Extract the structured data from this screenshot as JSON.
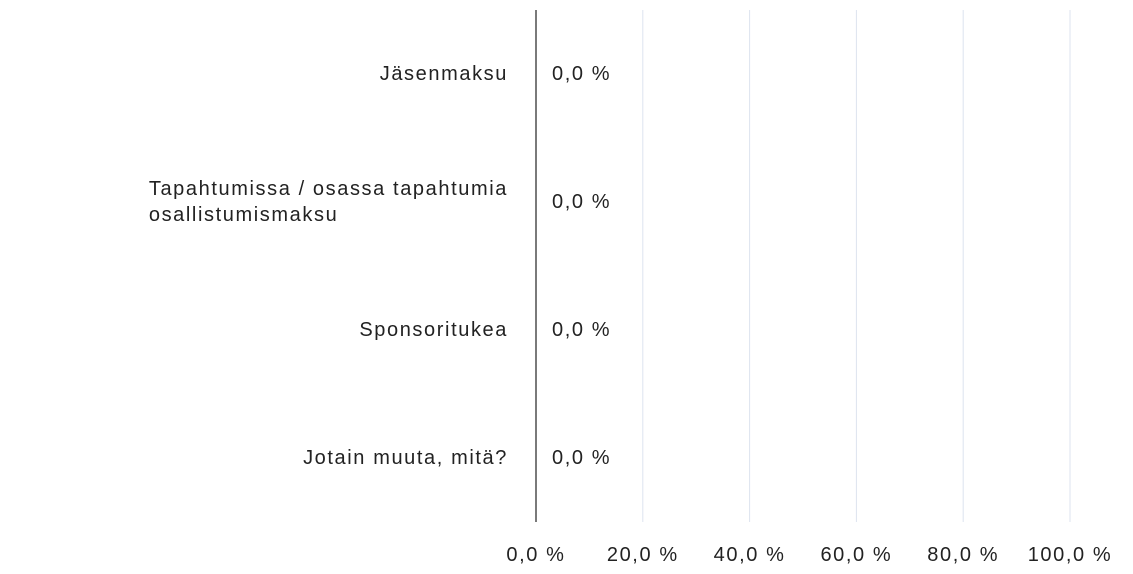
{
  "chart_data": {
    "type": "bar",
    "orientation": "horizontal",
    "categories": [
      "Jäsenmaksu",
      "Tapahtumissa / osassa tapahtumia\nosallistumismaksu",
      "Sponsoritukea",
      "Jotain muuta, mitä?"
    ],
    "values": [
      0,
      0,
      0,
      0
    ],
    "value_labels": [
      "0,0 %",
      "0,0 %",
      "0,0 %",
      "0,0 %"
    ],
    "color": "#4472c4",
    "xlim": [
      0,
      100
    ],
    "xticks": [
      {
        "value": 0,
        "label": "0,0 %"
      },
      {
        "value": 20,
        "label": "20,0 %"
      },
      {
        "value": 40,
        "label": "40,0 %"
      },
      {
        "value": 60,
        "label": "60,0 %"
      },
      {
        "value": 80,
        "label": "80,0 %"
      },
      {
        "value": 100,
        "label": "100,0 %"
      }
    ],
    "grid": true
  }
}
